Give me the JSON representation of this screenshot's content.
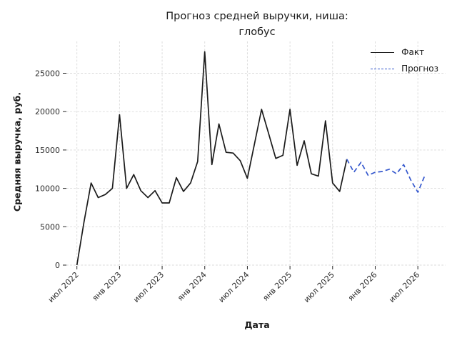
{
  "chart_data": {
    "type": "line",
    "title": "Прогноз средней выручки, ниша: глобус",
    "title_lines": [
      "Прогноз средней выручки, ниша:",
      "глобус"
    ],
    "xlabel": "Дата",
    "ylabel": "Средняя выручка, руб.",
    "grid": true,
    "background": "#ffffff",
    "grid_color": "#d9d9d9",
    "tick_text_color": "#2b2b2b",
    "ylim": [
      0,
      29000
    ],
    "y_ticks": [
      0,
      5000,
      10000,
      15000,
      20000,
      25000
    ],
    "x_unit": "month",
    "x_start": "2022-07",
    "x_ticks": [
      {
        "index": 0,
        "label": "июл 2022"
      },
      {
        "index": 6,
        "label": "янв 2023"
      },
      {
        "index": 12,
        "label": "июл 2023"
      },
      {
        "index": 18,
        "label": "янв 2024"
      },
      {
        "index": 24,
        "label": "июл 2024"
      },
      {
        "index": 30,
        "label": "янв 2025"
      },
      {
        "index": 36,
        "label": "июл 2025"
      },
      {
        "index": 42,
        "label": "янв 2026"
      },
      {
        "index": 48,
        "label": "июл 2026"
      }
    ],
    "legend_position": "upper right",
    "legend": [
      {
        "label": "Факт",
        "color": "#1a1a1a",
        "dash": "solid"
      },
      {
        "label": "Прогноз",
        "color": "#3457cd",
        "dash": "dashed"
      }
    ],
    "series": [
      {
        "name": "Факт",
        "color": "#1a1a1a",
        "style": "solid",
        "start_index": 0,
        "start_month": "2022-07",
        "values": [
          0,
          5600,
          10700,
          8800,
          9200,
          10000,
          19600,
          10000,
          11800,
          9700,
          8800,
          9700,
          8100,
          8100,
          11400,
          9600,
          10700,
          13500,
          27800,
          13100,
          18400,
          14700,
          14600,
          13600,
          11300,
          15800,
          20300,
          17100,
          13900,
          14300,
          20300,
          13000,
          16200,
          11900,
          11600,
          18800,
          10700,
          9600,
          13800
        ]
      },
      {
        "name": "Прогноз",
        "color": "#3457cd",
        "style": "dashed",
        "start_index": 38,
        "start_month": "2025-09",
        "values": [
          13800,
          12100,
          13400,
          11700,
          12100,
          12200,
          12500,
          11900,
          13100,
          11100,
          9500,
          11700
        ]
      }
    ]
  }
}
